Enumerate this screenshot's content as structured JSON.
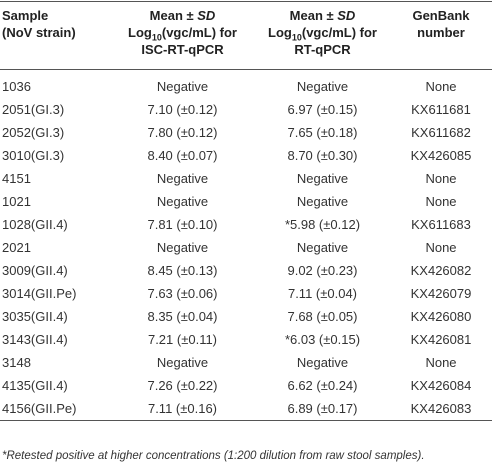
{
  "table": {
    "header": [
      {
        "lines": [
          [
            {
              "t": "Sample"
            }
          ],
          [
            {
              "t": "(NoV strain)"
            }
          ]
        ]
      },
      {
        "lines": [
          [
            {
              "t": "Mean ± "
            },
            {
              "t": "SD",
              "italic": true
            }
          ],
          [
            {
              "t": "Log"
            },
            {
              "t": "10",
              "sub": true
            },
            {
              "t": "(vgc/mL) for"
            }
          ],
          [
            {
              "t": "ISC-RT-qPCR"
            }
          ]
        ]
      },
      {
        "lines": [
          [
            {
              "t": "Mean ± "
            },
            {
              "t": "SD",
              "italic": true
            }
          ],
          [
            {
              "t": "Log"
            },
            {
              "t": "10",
              "sub": true
            },
            {
              "t": "(vgc/mL) for"
            }
          ],
          [
            {
              "t": "RT-qPCR"
            }
          ]
        ]
      },
      {
        "lines": [
          [
            {
              "t": "GenBank"
            }
          ],
          [
            {
              "t": "number"
            }
          ]
        ]
      }
    ],
    "rows": [
      [
        "1036",
        "Negative",
        "Negative",
        "None"
      ],
      [
        "2051(GI.3)",
        "7.10 (±0.12)",
        "6.97 (±0.15)",
        "KX611681"
      ],
      [
        "2052(GI.3)",
        "7.80 (±0.12)",
        "7.65 (±0.18)",
        "KX611682"
      ],
      [
        "3010(GI.3)",
        "8.40 (±0.07)",
        "8.70 (±0.30)",
        "KX426085"
      ],
      [
        "4151",
        "Negative",
        "Negative",
        "None"
      ],
      [
        "1021",
        "Negative",
        "Negative",
        "None"
      ],
      [
        "1028(GII.4)",
        "7.81 (±0.10)",
        "*5.98 (±0.12)",
        "KX611683"
      ],
      [
        "2021",
        "Negative",
        "Negative",
        "None"
      ],
      [
        "3009(GII.4)",
        "8.45 (±0.13)",
        "9.02 (±0.23)",
        "KX426082"
      ],
      [
        "3014(GII.Pe)",
        "7.63 (±0.06)",
        "7.11 (±0.04)",
        "KX426079"
      ],
      [
        "3035(GII.4)",
        "8.35 (±0.04)",
        "7.68 (±0.05)",
        "KX426080"
      ],
      [
        "3143(GII.4)",
        "7.21 (±0.11)",
        "*6.03 (±0.15)",
        "KX426081"
      ],
      [
        "3148",
        "Negative",
        "Negative",
        "None"
      ],
      [
        "4135(GII.4)",
        "7.26 (±0.22)",
        "6.62 (±0.24)",
        "KX426084"
      ],
      [
        "4156(GII.Pe)",
        "7.11 (±0.16)",
        "6.89 (±0.17)",
        "KX426083"
      ]
    ],
    "footnote": "*Retested positive at higher concentrations (1:200 dilution from raw stool samples)."
  }
}
